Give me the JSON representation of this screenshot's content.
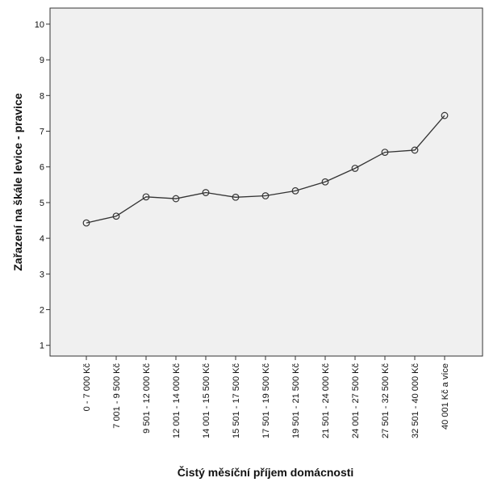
{
  "chart_data": {
    "type": "line",
    "title": "",
    "xlabel": "Čistý měsíční příjem domácnosti",
    "ylabel": "Zařazení na škále levice - pravice",
    "categories": [
      "0 - 7 000 Kč",
      "7 001 - 9 500 Kč",
      "9 501 - 12 000 Kč",
      "12 001 - 14 000 Kč",
      "14 001 - 15 500 Kč",
      "15 501 - 17 500 Kč",
      "17 501 - 19 500 Kč",
      "19 501 - 21 500 Kč",
      "21 501 - 24 000 Kč",
      "24 001 - 27 500 Kč",
      "27 501 - 32 500 Kč",
      "32 501 - 40 000 Kč",
      "40 001 Kč a více"
    ],
    "series": [
      {
        "values": [
          4.43,
          4.62,
          5.16,
          5.11,
          5.28,
          5.15,
          5.19,
          5.33,
          5.58,
          5.96,
          6.41,
          6.47,
          7.44
        ]
      }
    ],
    "yticks": [
      1,
      2,
      3,
      4,
      5,
      6,
      7,
      8,
      9,
      10
    ],
    "ylim": [
      0.7,
      10.45
    ],
    "grid": false,
    "legend": "none",
    "colors": {
      "plot_background": "#f0f0f0",
      "line": "#333333",
      "marker_stroke": "#333333",
      "axis": "#333333"
    }
  }
}
